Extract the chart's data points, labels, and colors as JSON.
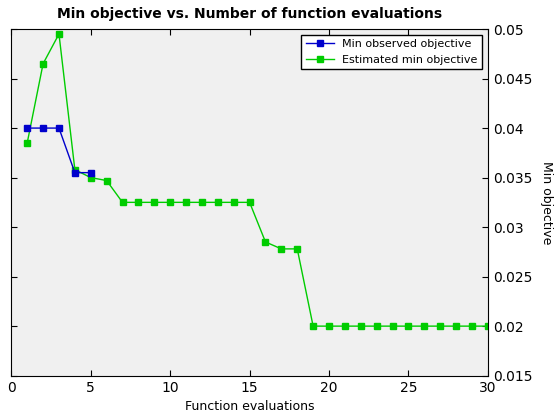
{
  "title": "Min objective vs. Number of function evaluations",
  "xlabel": "Function evaluations",
  "ylabel": "Min objective",
  "xlim": [
    0,
    30
  ],
  "ylim": [
    0.015,
    0.05
  ],
  "yticks": [
    0.015,
    0.02,
    0.025,
    0.03,
    0.035,
    0.04,
    0.045,
    0.05
  ],
  "xticks": [
    0,
    5,
    10,
    15,
    20,
    25,
    30
  ],
  "blue_x": [
    1,
    2,
    3,
    4,
    5
  ],
  "blue_y": [
    0.04,
    0.04,
    0.04,
    0.0355,
    0.0355
  ],
  "green_x": [
    1,
    2,
    3,
    4,
    5,
    6,
    7,
    8,
    9,
    10,
    11,
    12,
    13,
    14,
    15,
    16,
    17,
    18,
    19,
    20,
    21,
    22,
    23,
    24,
    25,
    26,
    27,
    28,
    29,
    30
  ],
  "green_y": [
    0.0385,
    0.0465,
    0.0495,
    0.0358,
    0.035,
    0.0347,
    0.0325,
    0.0325,
    0.0325,
    0.0325,
    0.0325,
    0.0325,
    0.0325,
    0.0325,
    0.0325,
    0.0285,
    0.0278,
    0.0278,
    0.02,
    0.02,
    0.02,
    0.02,
    0.02,
    0.02,
    0.02,
    0.02,
    0.02,
    0.02,
    0.02,
    0.02
  ],
  "blue_color": "#0000cc",
  "green_color": "#00cc00",
  "blue_label": "Min observed objective",
  "green_label": "Estimated min objective",
  "blue_marker": "s",
  "green_marker": "s",
  "marker_size": 4,
  "linewidth": 1.0,
  "background_color": "#f0f0f0"
}
